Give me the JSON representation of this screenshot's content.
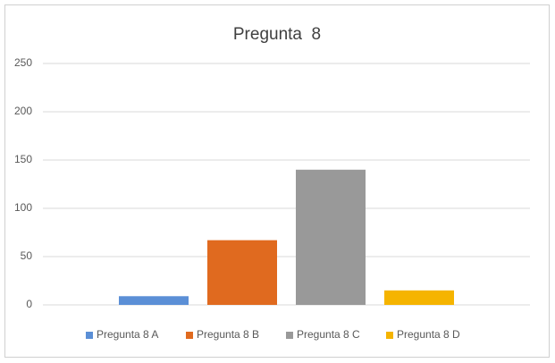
{
  "chart_data": {
    "type": "bar",
    "title": "Pregunta  8",
    "categories": [
      null
    ],
    "series": [
      {
        "name": "Pregunta 8 A",
        "color": "#5b8fd6",
        "values": [
          9
        ]
      },
      {
        "name": "Pregunta 8 B",
        "color": "#e06a1f",
        "values": [
          67
        ]
      },
      {
        "name": "Pregunta 8 C",
        "color": "#999999",
        "values": [
          140
        ]
      },
      {
        "name": "Pregunta 8 D",
        "color": "#f5b400",
        "values": [
          15
        ]
      }
    ],
    "ylim": [
      0,
      250
    ],
    "yticks": [
      0,
      50,
      100,
      150,
      200,
      250
    ],
    "grid": true,
    "legend": "bottom"
  }
}
